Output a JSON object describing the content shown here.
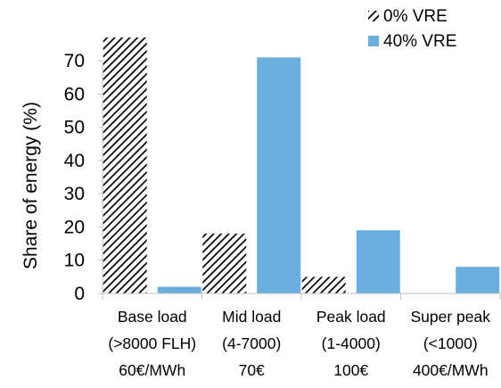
{
  "chart_data": {
    "type": "bar",
    "categories": [
      [
        "Base load",
        "(>8000 FLH)",
        "60€/MWh"
      ],
      [
        "Mid load",
        "(4-7000)",
        "70€"
      ],
      [
        "Peak load",
        "(1-4000)",
        "100€"
      ],
      [
        "Super peak",
        "(<1000)",
        "400€/MWh"
      ]
    ],
    "series": [
      {
        "name": "0% VRE",
        "values": [
          77,
          18,
          5,
          0
        ],
        "pattern": "hatched",
        "color": "#000000"
      },
      {
        "name": "40% VRE",
        "values": [
          2,
          71,
          19,
          8
        ],
        "pattern": "solid",
        "color": "#6aaedf"
      }
    ],
    "ylabel": "Share of energy (%)",
    "ylim": [
      0,
      77
    ],
    "yticks": [
      0,
      10,
      20,
      30,
      40,
      50,
      60,
      70
    ],
    "grid": false,
    "legend_position": "top-right"
  }
}
